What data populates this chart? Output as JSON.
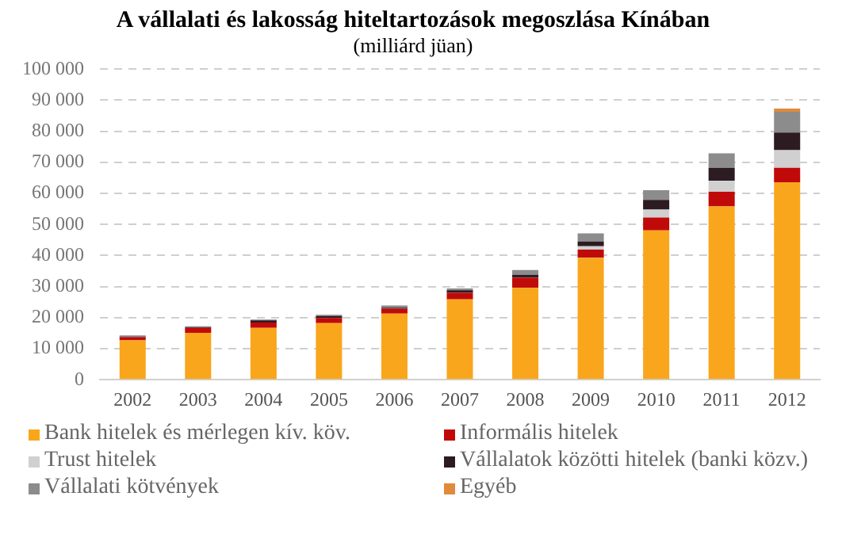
{
  "chart_data": {
    "type": "bar",
    "title": "A vállalati és lakosság hiteltartozások megoszlása Kínában",
    "subtitle": "(milliárd jüan)",
    "categories": [
      "2002",
      "2003",
      "2004",
      "2005",
      "2006",
      "2007",
      "2008",
      "2009",
      "2010",
      "2011",
      "2012"
    ],
    "stacked": true,
    "ylim": [
      0,
      100000
    ],
    "yticks": [
      {
        "value": 0,
        "label": "0"
      },
      {
        "value": 10000,
        "label": "10 000"
      },
      {
        "value": 20000,
        "label": "20 000"
      },
      {
        "value": 30000,
        "label": "30 000"
      },
      {
        "value": 40000,
        "label": "40 000"
      },
      {
        "value": 50000,
        "label": "50 000"
      },
      {
        "value": 60000,
        "label": "60 000"
      },
      {
        "value": 70000,
        "label": "70 000"
      },
      {
        "value": 80000,
        "label": "80 000"
      },
      {
        "value": 90000,
        "label": "90 000"
      },
      {
        "value": 100000,
        "label": "100 000"
      }
    ],
    "grid": "y",
    "legend": "bottom",
    "series": [
      {
        "name": "Bank hitelek és mérlegen kív. köv.",
        "color": "#f9a61c",
        "values": [
          12700,
          15100,
          16700,
          18200,
          21300,
          25900,
          29600,
          39300,
          48100,
          55800,
          63600
        ]
      },
      {
        "name": "Informális hitelek",
        "color": "#c00a0a",
        "values": [
          1000,
          1600,
          1700,
          1700,
          1600,
          2100,
          3200,
          2600,
          4100,
          4700,
          4600
        ]
      },
      {
        "name": "Trust hitelek",
        "color": "#d0d0d0",
        "values": [
          0,
          0,
          0,
          null,
          null,
          null,
          null,
          1100,
          2600,
          3600,
          5700
        ]
      },
      {
        "name": "Vállalatok közötti hitelek (banki közv.)",
        "color": "#2d1b22",
        "values": [
          200,
          200,
          700,
          600,
          300,
          800,
          1000,
          1500,
          3100,
          4100,
          5700
        ]
      },
      {
        "name": "Vállalati kötvények",
        "color": "#8c8c8c",
        "values": [
          400,
          300,
          300,
          400,
          700,
          600,
          1500,
          2600,
          3100,
          4700,
          6700
        ]
      },
      {
        "name": "Egyéb",
        "color": "#e08a3c",
        "values": [
          0,
          0,
          0,
          0,
          0,
          0,
          0,
          0,
          0,
          0,
          1000
        ]
      }
    ]
  }
}
